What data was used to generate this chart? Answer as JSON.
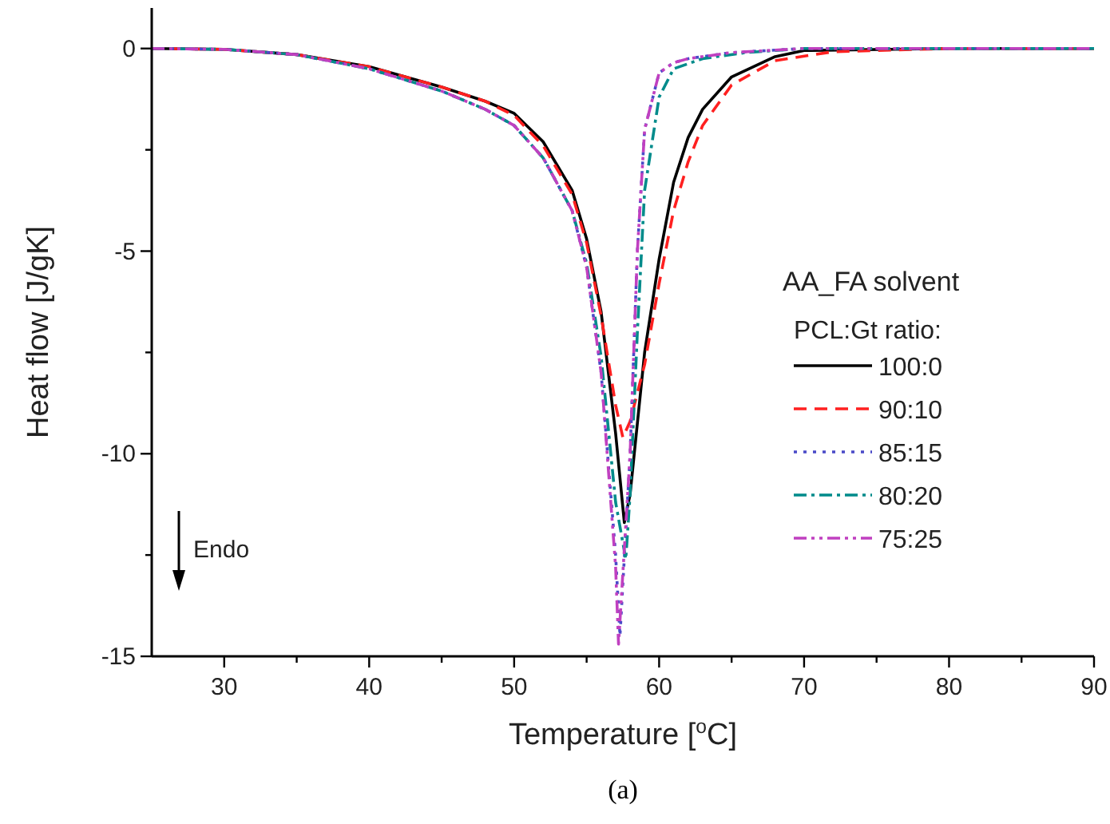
{
  "chart_data": {
    "type": "line",
    "xlabel": "Temperature [$^{o}$C]",
    "ylabel": "Heat flow [J/gK]",
    "legend_title": "PCL:Gt ratio:",
    "legend": "right",
    "xlim": [
      25,
      90
    ],
    "ylim": [
      -15,
      1
    ],
    "xticks": [
      30,
      {
        "value": 35,
        "label": null
      },
      40,
      {
        "value": 45,
        "label": null
      },
      50,
      {
        "value": 55,
        "label": null
      },
      60,
      {
        "value": 65,
        "label": null
      },
      70,
      {
        "value": 75,
        "label": null
      },
      80,
      {
        "value": 85,
        "label": null
      },
      90
    ],
    "yticks": [
      {
        "value": -15,
        "label": "-15"
      },
      {
        "value": -12.5,
        "label": null
      },
      {
        "value": -10,
        "label": "-10"
      },
      {
        "value": -7.5,
        "label": null
      },
      {
        "value": -5,
        "label": "-5"
      },
      {
        "value": -2.5,
        "label": null
      },
      0
    ],
    "annotations": [
      "AA_FA solvent",
      "Endo",
      "(a)"
    ],
    "series": [
      {
        "name": "100:0",
        "color": "#000000",
        "line_style": "solid",
        "x": [
          25,
          30,
          35,
          40,
          45,
          48,
          50,
          52,
          54,
          55,
          56,
          57,
          57.6,
          58,
          59,
          60,
          61,
          62,
          63,
          65,
          68,
          70,
          80,
          90
        ],
        "values": [
          0,
          -0.02,
          -0.15,
          -0.45,
          -0.95,
          -1.3,
          -1.6,
          -2.3,
          -3.5,
          -4.7,
          -6.5,
          -9.5,
          -11.7,
          -11,
          -7.5,
          -5.2,
          -3.3,
          -2.2,
          -1.5,
          -0.7,
          -0.2,
          -0.05,
          0,
          0
        ]
      },
      {
        "name": "90:10",
        "color": "#ff2020",
        "line_style": "dashed",
        "x": [
          25,
          30,
          35,
          40,
          45,
          48,
          50,
          52,
          54,
          55,
          56,
          57,
          57.5,
          58,
          59,
          60,
          61,
          62,
          63,
          65,
          68,
          72,
          80,
          90
        ],
        "values": [
          0,
          -0.02,
          -0.15,
          -0.45,
          -0.95,
          -1.3,
          -1.65,
          -2.4,
          -3.6,
          -4.8,
          -6.6,
          -8.8,
          -9.6,
          -9.2,
          -7.8,
          -5.8,
          -4,
          -2.8,
          -1.9,
          -0.9,
          -0.3,
          -0.08,
          0,
          0
        ]
      },
      {
        "name": "85:15",
        "color": "#4a4ac8",
        "line_style": "dotted",
        "x": [
          25,
          30,
          35,
          40,
          45,
          48,
          50,
          52,
          54,
          55,
          56,
          57,
          57.3,
          58,
          58.5,
          59,
          60,
          61,
          62,
          65,
          70,
          80,
          90
        ],
        "values": [
          0,
          -0.02,
          -0.15,
          -0.5,
          -1.05,
          -1.5,
          -1.9,
          -2.7,
          -4,
          -5.4,
          -8,
          -12.5,
          -14.5,
          -10,
          -5,
          -2,
          -0.6,
          -0.35,
          -0.25,
          -0.1,
          0,
          0,
          0
        ]
      },
      {
        "name": "80:20",
        "color": "#008b8b",
        "line_style": "dashdot",
        "x": [
          25,
          30,
          35,
          40,
          45,
          48,
          50,
          52,
          54,
          55,
          56,
          57,
          57.7,
          58,
          58.5,
          59,
          60,
          61,
          63,
          66,
          70,
          80,
          90
        ],
        "values": [
          0,
          -0.02,
          -0.15,
          -0.5,
          -1.05,
          -1.5,
          -1.9,
          -2.7,
          -4,
          -5.3,
          -7.6,
          -11.2,
          -12.6,
          -11,
          -7,
          -3.5,
          -1.2,
          -0.5,
          -0.25,
          -0.1,
          0,
          0,
          0
        ]
      },
      {
        "name": "75:25",
        "color": "#c040c0",
        "line_style": "dashdotdot",
        "x": [
          25,
          30,
          35,
          40,
          45,
          48,
          50,
          52,
          54,
          55,
          56,
          57,
          57.2,
          58,
          58.5,
          59,
          60,
          61,
          62,
          65,
          70,
          80,
          90
        ],
        "values": [
          0,
          -0.02,
          -0.15,
          -0.5,
          -1.05,
          -1.5,
          -1.9,
          -2.7,
          -4,
          -5.4,
          -8,
          -12.8,
          -14.7,
          -10,
          -5,
          -2,
          -0.6,
          -0.35,
          -0.25,
          -0.1,
          0,
          0,
          0
        ]
      }
    ]
  }
}
